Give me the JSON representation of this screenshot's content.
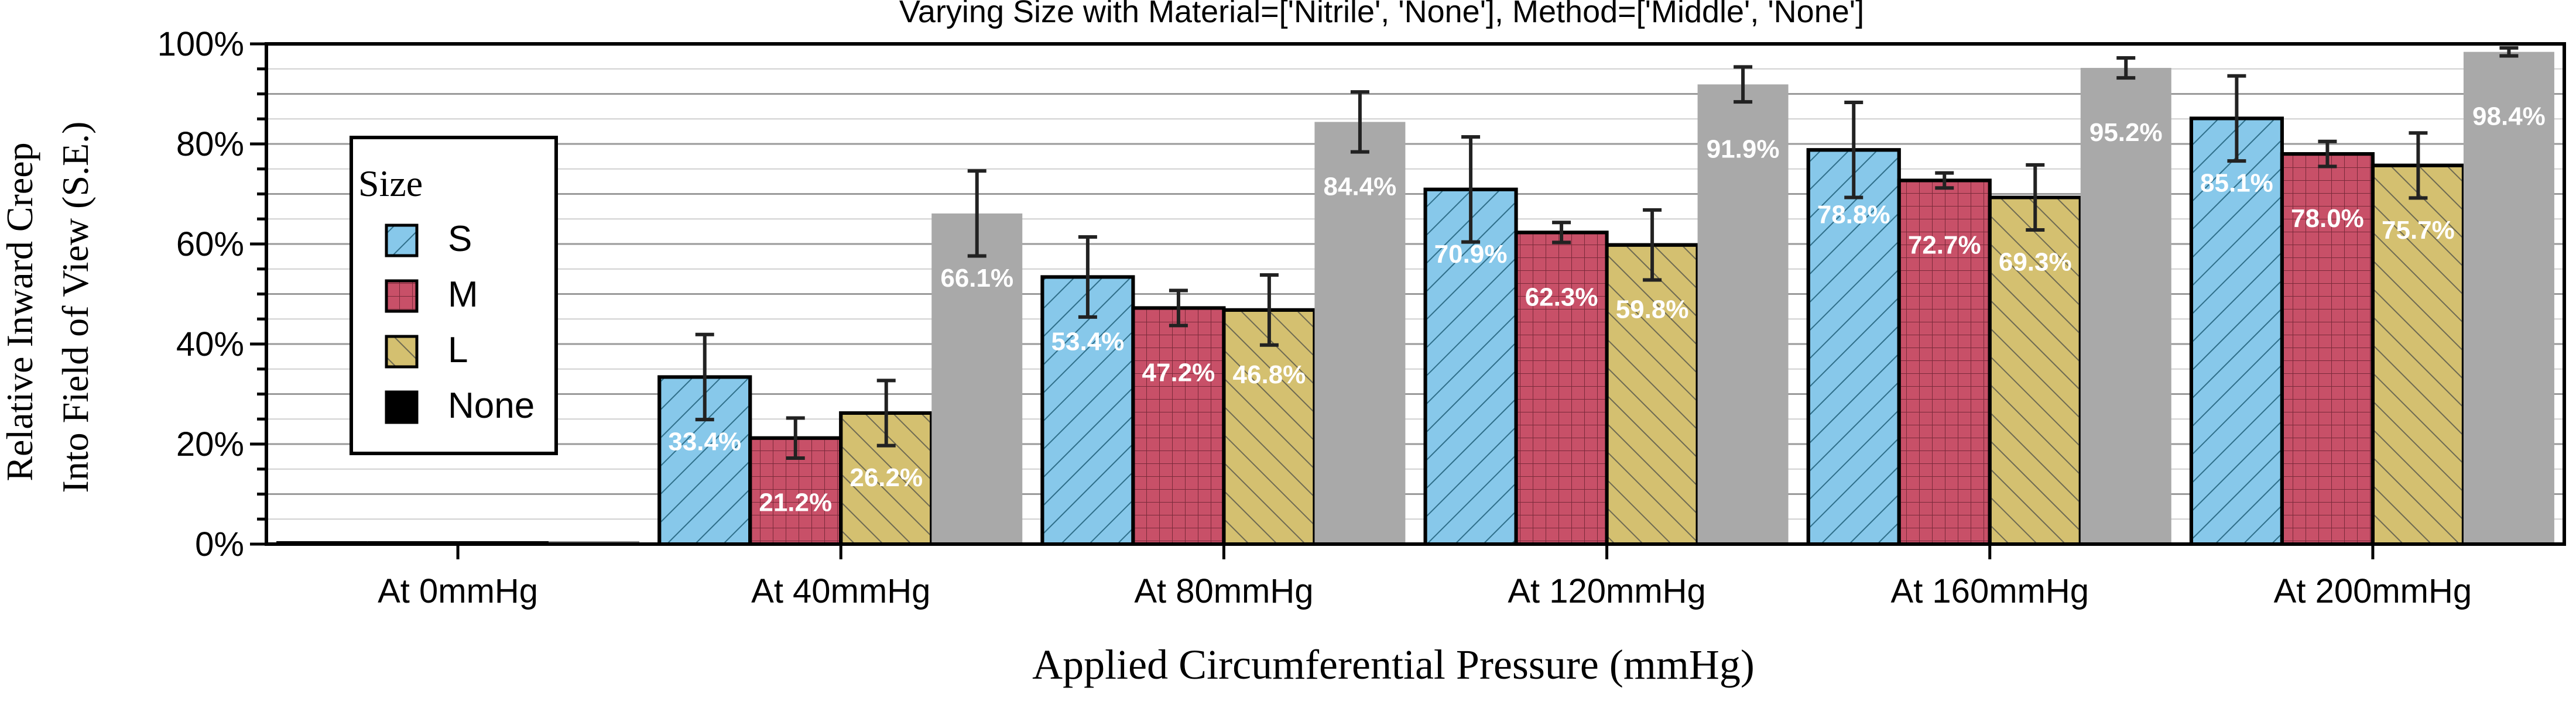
{
  "chart_data": {
    "type": "bar",
    "title": "Varying Size with Material=['Nitrile', 'None'], Method=['Middle', 'None']",
    "xlabel": "Applied Circumferential Pressure (mmHg)",
    "ylabel_lines": [
      "Relative Inward Creep",
      "Into Field of View (S.E.)"
    ],
    "categories": [
      "At 0mmHg",
      "At 40mmHg",
      "At 80mmHg",
      "At 120mmHg",
      "At 160mmHg",
      "At 200mmHg"
    ],
    "ylim": [
      0,
      100
    ],
    "yticks": [
      "0%",
      "20%",
      "40%",
      "60%",
      "80%",
      "100%"
    ],
    "grid": true,
    "legend": {
      "title": "Size",
      "position": "left",
      "entries": [
        "S",
        "M",
        "L",
        "None"
      ]
    },
    "series": [
      {
        "name": "S",
        "color": "#87c8ea",
        "hatch": "diagonal",
        "values": [
          0,
          33.4,
          53.4,
          70.9,
          78.8,
          85.1
        ],
        "errors": [
          0,
          8.5,
          8.0,
          10.5,
          9.5,
          8.5
        ],
        "labels": [
          "",
          "33.4%",
          "53.4%",
          "70.9%",
          "78.8%",
          "85.1%"
        ]
      },
      {
        "name": "M",
        "color": "#c85068",
        "hatch": "grid",
        "values": [
          0,
          21.2,
          47.2,
          62.3,
          72.7,
          78.0
        ],
        "errors": [
          0,
          4.0,
          3.5,
          2.0,
          1.5,
          2.5
        ],
        "labels": [
          "",
          "21.2%",
          "47.2%",
          "62.3%",
          "72.7%",
          "78.0%"
        ]
      },
      {
        "name": "L",
        "color": "#d4c070",
        "hatch": "backdiagonal",
        "values": [
          0,
          26.2,
          46.8,
          59.8,
          69.3,
          75.7
        ],
        "errors": [
          0,
          6.5,
          7.0,
          7.0,
          6.5,
          6.5
        ],
        "labels": [
          "",
          "26.2%",
          "46.8%",
          "59.8%",
          "69.3%",
          "75.7%"
        ]
      },
      {
        "name": "None",
        "color": "#a9a9a9",
        "hatch": "none",
        "values": [
          0,
          66.1,
          84.4,
          91.9,
          95.2,
          98.4
        ],
        "errors": [
          0,
          8.5,
          6.0,
          3.5,
          2.0,
          0.8
        ],
        "labels": [
          "",
          "66.1%",
          "84.4%",
          "91.9%",
          "95.2%",
          "98.4%"
        ]
      }
    ]
  }
}
